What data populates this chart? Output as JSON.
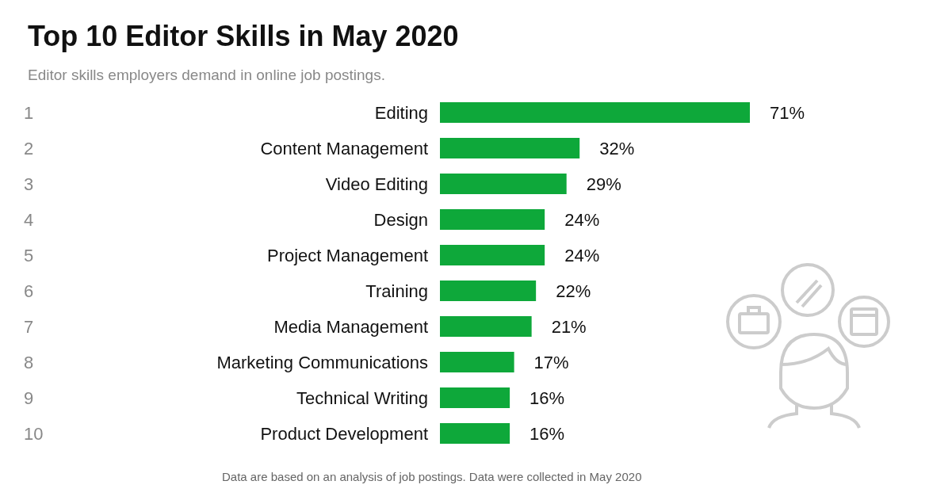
{
  "chart_data": {
    "type": "bar",
    "orientation": "horizontal",
    "title": "Top 10 Editor Skills in May 2020",
    "subtitle": "Editor skills employers demand in online job postings.",
    "categories": [
      "Editing",
      "Content Management",
      "Video Editing",
      "Design",
      "Project Management",
      "Training",
      "Media Management",
      "Marketing Communications",
      "Technical Writing",
      "Product Development"
    ],
    "values": [
      71,
      32,
      29,
      24,
      24,
      22,
      21,
      17,
      16,
      16
    ],
    "value_labels": [
      "71%",
      "32%",
      "29%",
      "24%",
      "24%",
      "22%",
      "21%",
      "17%",
      "16%",
      "16%"
    ],
    "color": "#0ea83a",
    "grid": false,
    "annotations": [
      "1",
      "2",
      "3",
      "4",
      "5",
      "6",
      "7",
      "8",
      "9",
      "10",
      "Data are based on an analysis of job postings. Data were collected in May 2020"
    ]
  }
}
